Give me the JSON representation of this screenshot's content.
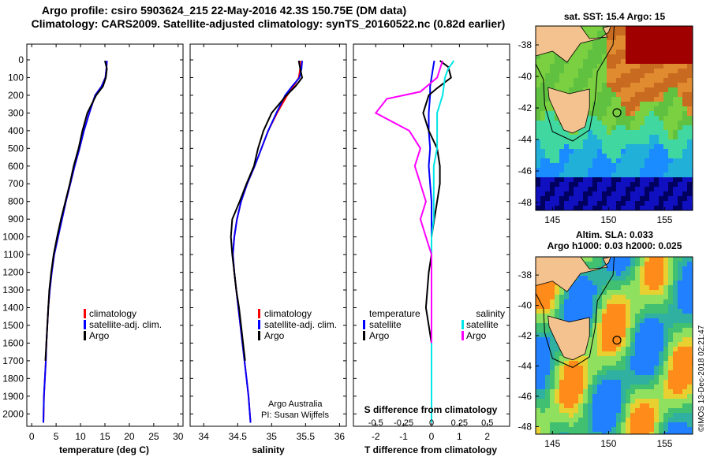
{
  "figure": {
    "title_line1": "Argo profile: csiro 5903624_215 22-May-2016 42.3S 150.75E (DM data)",
    "title_line2": "Climatology: CARS2009. Satellite-adjusted climatology: synTS_20160522.nc (0.82d earlier)",
    "credit_line1": "Argo Australia",
    "credit_line2": "PI: Susan Wijffels",
    "stamp": "©IMOS 13-Dec-2018 02:21:47"
  },
  "colors": {
    "climatology": "#ff0000",
    "satellite_adj": "#0000ff",
    "argo": "#000000",
    "sat_temp": "#0000ff",
    "sat_sal": "#00e5e5",
    "argo_sal": "#ff00ff",
    "land": "#f4c28e"
  },
  "chart_data": [
    {
      "type": "line",
      "name": "temperature-profile",
      "xlabel": "temperature (deg C)",
      "ylabel": "",
      "xlim": [
        -1,
        31
      ],
      "ylim": [
        2070,
        0
      ],
      "xticks": [
        0,
        5,
        10,
        15,
        20,
        25,
        30
      ],
      "yticks": [
        0,
        100,
        200,
        300,
        400,
        500,
        600,
        700,
        800,
        900,
        1000,
        1100,
        1200,
        1300,
        1400,
        1500,
        1600,
        1700,
        1800,
        1900,
        2000
      ],
      "legend": [
        "climatology",
        "satellite-adj. clim.",
        "Argo"
      ],
      "series": [
        {
          "key": "climatology",
          "color": "#ff0000",
          "x": [
            15.4,
            15.3,
            15.1,
            14.3,
            13.0,
            11.8,
            10.7,
            9.8,
            8.8,
            7.9,
            7.0,
            6.2,
            5.4,
            4.6,
            4.1,
            3.7,
            3.4,
            3.2,
            3.0,
            2.9,
            2.7,
            2.5,
            2.4
          ],
          "y": [
            5,
            50,
            100,
            150,
            200,
            300,
            400,
            500,
            600,
            700,
            800,
            900,
            1000,
            1100,
            1200,
            1300,
            1400,
            1500,
            1600,
            1700,
            1800,
            1900,
            2050
          ]
        },
        {
          "key": "satellite_adj",
          "color": "#0000ff",
          "x": [
            15.4,
            15.3,
            15.1,
            14.3,
            13.0,
            11.8,
            10.7,
            9.8,
            8.8,
            7.9,
            7.0,
            6.2,
            5.4,
            4.6,
            4.1,
            3.7,
            3.4,
            3.2,
            3.0,
            2.9,
            2.7,
            2.5,
            2.4
          ],
          "y": [
            5,
            50,
            100,
            150,
            200,
            300,
            400,
            500,
            600,
            700,
            800,
            900,
            1000,
            1100,
            1200,
            1300,
            1400,
            1500,
            1600,
            1700,
            1800,
            1900,
            2050
          ]
        },
        {
          "key": "argo",
          "color": "#000000",
          "x": [
            15.0,
            15.4,
            15.2,
            14.6,
            13.2,
            11.4,
            10.4,
            9.6,
            8.6,
            7.8,
            6.9,
            6.0,
            5.2,
            4.5,
            4.0,
            3.6,
            3.4,
            3.2,
            3.0,
            2.8
          ],
          "y": [
            5,
            50,
            100,
            150,
            200,
            300,
            400,
            500,
            600,
            700,
            800,
            900,
            1000,
            1100,
            1200,
            1300,
            1400,
            1500,
            1600,
            1700
          ]
        }
      ]
    },
    {
      "type": "line",
      "name": "salinity-profile",
      "xlabel": "salinity",
      "xlim": [
        33.8,
        36.1
      ],
      "ylim": [
        2070,
        0
      ],
      "xticks": [
        34,
        34.5,
        35,
        35.5,
        36
      ],
      "legend": [
        "climatology",
        "satellite-adj. clim.",
        "Argo"
      ],
      "series": [
        {
          "key": "climatology",
          "color": "#ff0000",
          "x": [
            35.42,
            35.42,
            35.4,
            35.32,
            35.23,
            35.08,
            34.95,
            34.85,
            34.75,
            34.64,
            34.55,
            34.49,
            34.45,
            34.43,
            34.45,
            34.48,
            34.51,
            34.54,
            34.57,
            34.6,
            34.63,
            34.66,
            34.69
          ],
          "y": [
            5,
            50,
            100,
            150,
            200,
            300,
            400,
            500,
            600,
            700,
            800,
            900,
            1000,
            1100,
            1200,
            1300,
            1400,
            1500,
            1600,
            1700,
            1800,
            1900,
            2050
          ]
        },
        {
          "key": "satellite_adj",
          "color": "#0000ff",
          "x": [
            35.45,
            35.44,
            35.41,
            35.3,
            35.2,
            35.07,
            34.95,
            34.85,
            34.75,
            34.64,
            34.55,
            34.49,
            34.45,
            34.43,
            34.45,
            34.48,
            34.51,
            34.54,
            34.57,
            34.6,
            34.63,
            34.66,
            34.69
          ],
          "y": [
            5,
            50,
            100,
            150,
            200,
            300,
            400,
            500,
            600,
            700,
            800,
            900,
            1000,
            1100,
            1200,
            1300,
            1400,
            1500,
            1600,
            1700,
            1800,
            1900,
            2050
          ]
        },
        {
          "key": "argo",
          "color": "#000000",
          "x": [
            35.4,
            35.42,
            35.45,
            35.35,
            35.22,
            35.0,
            34.88,
            34.8,
            34.74,
            34.63,
            34.53,
            34.42,
            34.4,
            34.42,
            34.45,
            34.48,
            34.52,
            34.55,
            34.58,
            34.61
          ],
          "y": [
            5,
            50,
            100,
            150,
            200,
            300,
            400,
            500,
            600,
            700,
            800,
            900,
            1000,
            1100,
            1200,
            1300,
            1400,
            1500,
            1600,
            1700
          ]
        }
      ]
    },
    {
      "type": "line",
      "name": "difference-profile",
      "xlabel": "T difference from climatology",
      "xlabel_top": "S difference from climatology",
      "xlim": [
        -2.8,
        2.8
      ],
      "ylim": [
        2070,
        0
      ],
      "xticks": [
        -2,
        -1,
        0,
        1,
        2
      ],
      "xticks_s": [
        -0.5,
        -0.25,
        0,
        0.25,
        0.5
      ],
      "legend_left_title": "temperature",
      "legend_right_title": "salinity",
      "legend": [
        "satellite",
        "Argo",
        "satellite",
        "Argo"
      ],
      "series": [
        {
          "key": "sat_temp",
          "name": "satellite",
          "color": "#0000ff",
          "x": [
            0.1,
            0.05,
            0.0,
            -0.05,
            -0.05,
            -0.1,
            -0.1,
            -0.05,
            -0.1,
            -0.05,
            0.0,
            0.0,
            0.0,
            0.0,
            0.0,
            0.0,
            0.0,
            0.0,
            0.0,
            0.0,
            0.0
          ],
          "y": [
            5,
            50,
            100,
            150,
            200,
            300,
            400,
            500,
            600,
            700,
            800,
            900,
            1000,
            1100,
            1200,
            1300,
            1400,
            1500,
            1600,
            1700,
            1800
          ]
        },
        {
          "key": "argo",
          "name": "Argo",
          "color": "#000000",
          "x": [
            0.3,
            0.6,
            0.7,
            0.2,
            -0.1,
            -0.3,
            -0.1,
            0.2,
            0.3,
            0.3,
            0.2,
            0.1,
            0.0,
            0.0,
            -0.1,
            -0.2,
            -0.1,
            0.0
          ],
          "y": [
            5,
            40,
            100,
            160,
            200,
            300,
            400,
            500,
            600,
            700,
            800,
            900,
            1000,
            1100,
            1200,
            1400,
            1500,
            1600
          ]
        },
        {
          "key": "sat_sal",
          "name": "satellite",
          "color": "#00e5e5",
          "x": [
            0.2,
            0.15,
            0.12,
            0.1,
            0.05,
            0.05,
            0.05,
            0.02,
            0.02,
            0.02,
            0.02,
            0.0,
            0.0,
            0.0,
            0.0,
            0.0,
            0.0,
            0.0,
            0.0,
            0.0
          ],
          "y": [
            5,
            50,
            100,
            200,
            300,
            400,
            500,
            600,
            700,
            800,
            900,
            1000,
            1100,
            1200,
            1300,
            1400,
            1500,
            1600,
            1800,
            2050
          ]
        },
        {
          "key": "argo_sal",
          "name": "Argo",
          "color": "#ff00ff",
          "x": [
            0.1,
            0.05,
            -0.1,
            -0.4,
            -0.5,
            -0.2,
            -0.1,
            -0.15,
            -0.1,
            -0.05,
            -0.1,
            -0.05,
            0.0,
            0.0,
            0.0,
            0.0
          ],
          "y": [
            5,
            100,
            180,
            220,
            300,
            400,
            500,
            600,
            700,
            800,
            900,
            1000,
            1100,
            1200,
            1400,
            1600
          ]
        }
      ]
    },
    {
      "type": "heatmap",
      "name": "sst-map",
      "title": "sat. SST: 15.4 Argo: 15",
      "xticks": [
        145,
        150,
        155
      ],
      "yticks": [
        -38,
        -40,
        -42,
        -44,
        -46,
        -48
      ],
      "xlim": [
        143.5,
        157.5
      ],
      "ylim": [
        -48.5,
        -36.8
      ],
      "argo_position": [
        150.75,
        -42.3
      ]
    },
    {
      "type": "heatmap",
      "name": "sla-map",
      "title": "Altim. SLA: 0.033",
      "subtitle": "Argo h1000: 0.03 h2000: 0.025",
      "xticks": [
        145,
        150,
        155
      ],
      "yticks": [
        -38,
        -40,
        -42,
        -44,
        -46,
        -48
      ],
      "xlim": [
        143.5,
        157.5
      ],
      "ylim": [
        -48.5,
        -36.8
      ],
      "argo_position": [
        150.75,
        -42.3
      ]
    }
  ]
}
